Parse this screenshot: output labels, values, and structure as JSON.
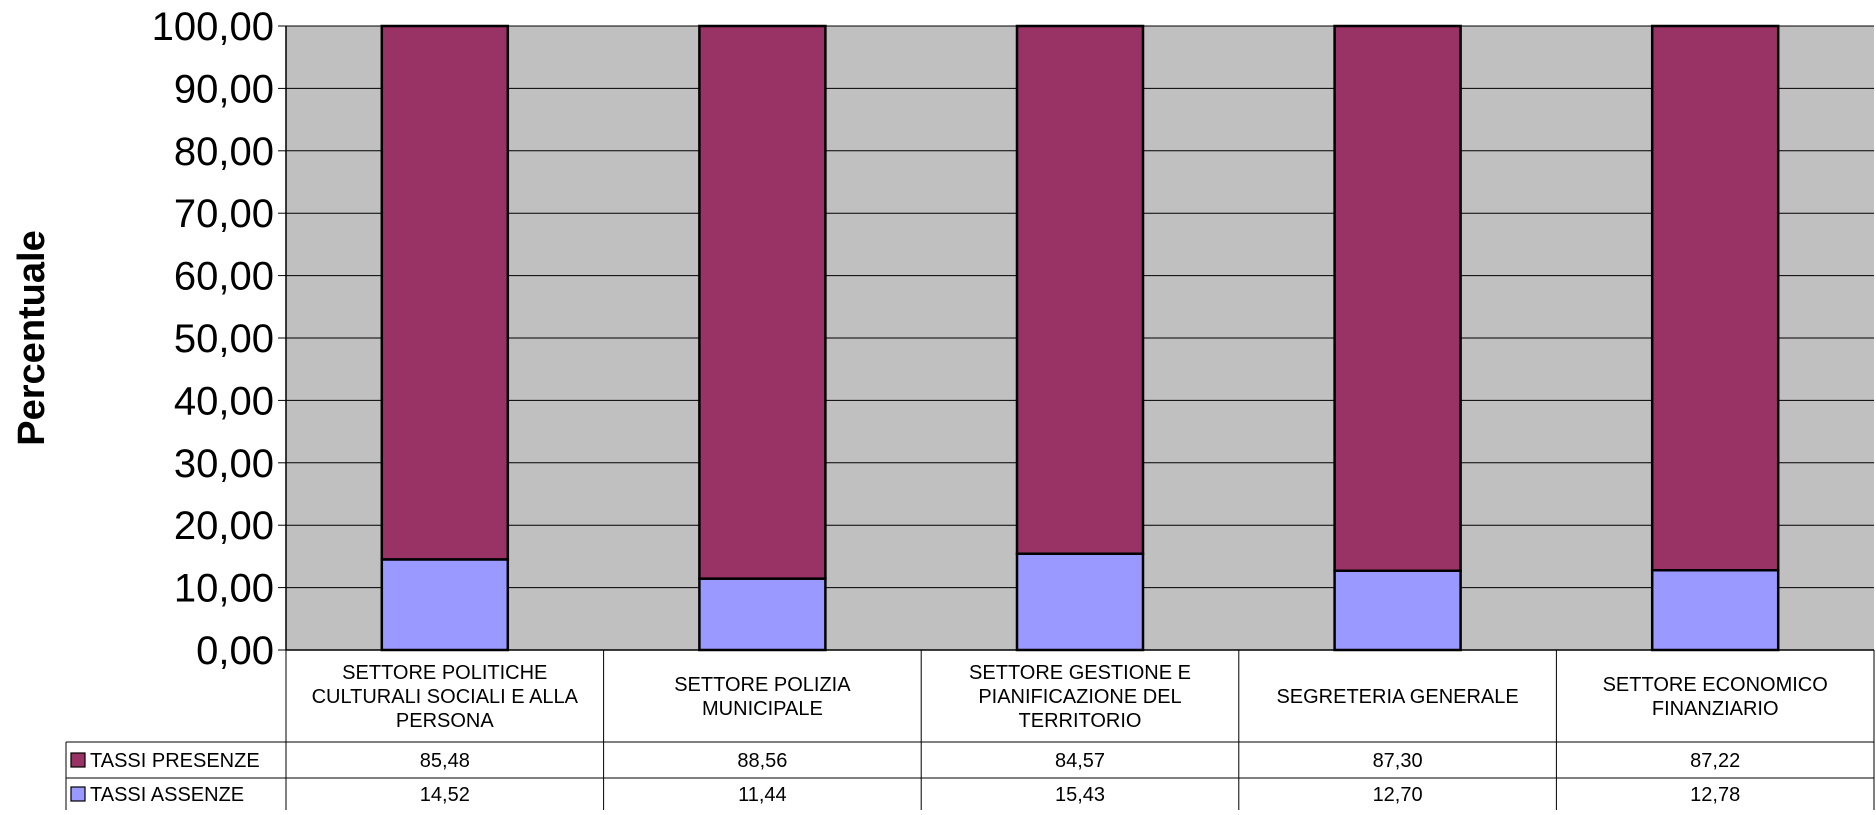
{
  "chart_data": {
    "type": "bar",
    "stacked": true,
    "ylabel": "Percentuale",
    "ylim": [
      0,
      100
    ],
    "yticks": [
      "0,00",
      "10,00",
      "20,00",
      "30,00",
      "40,00",
      "50,00",
      "60,00",
      "70,00",
      "80,00",
      "90,00",
      "100,00"
    ],
    "categories": [
      [
        "SETTORE POLITICHE",
        "CULTURALI SOCIALI E ALLA",
        "PERSONA"
      ],
      [
        "SETTORE POLIZIA",
        "MUNICIPALE"
      ],
      [
        "SETTORE GESTIONE E",
        "PIANIFICAZIONE DEL",
        "TERRITORIO"
      ],
      [
        "SEGRETERIA GENERALE"
      ],
      [
        "SETTORE ECONOMICO",
        "FINANZIARIO"
      ]
    ],
    "series": [
      {
        "name": "TASSI ASSENZE",
        "color": "#9999ff",
        "values": [
          14.52,
          11.44,
          15.43,
          12.7,
          12.78
        ],
        "labels": [
          "14,52",
          "11,44",
          "15,43",
          "12,70",
          "12,78"
        ]
      },
      {
        "name": "TASSI PRESENZE",
        "color": "#993366",
        "values": [
          85.48,
          88.56,
          84.57,
          87.3,
          87.22
        ],
        "labels": [
          "85,48",
          "88,56",
          "84,57",
          "87,30",
          "87,22"
        ]
      }
    ],
    "table_row_order": [
      "TASSI PRESENZE",
      "TASSI ASSENZE"
    ],
    "plot_background": "#c0c0c0",
    "grid": true,
    "legend": "data-table"
  }
}
